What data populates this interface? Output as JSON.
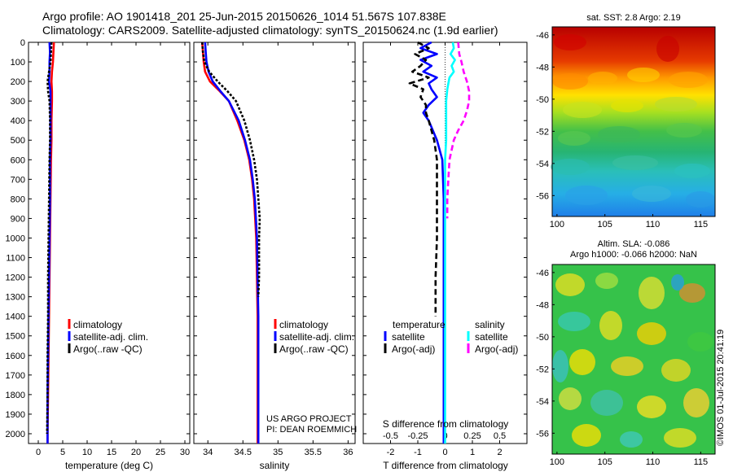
{
  "header": {
    "line1": "Argo profile: AO 1901418_201 25-Jun-2015 20150626_1014 51.567S 107.838E",
    "line2": "Climatology: CARS2009. Satellite-adjusted climatology: synTS_20150624.nc (1.9d earlier)"
  },
  "stamp": "©IMOS 01-Jul-2015 20:41:19",
  "colors": {
    "climatology": "#ff0000",
    "satellite": "#0000ff",
    "argo": "#000000",
    "sal_satellite": "#00ffff",
    "sal_argo": "#ff00ff"
  },
  "chart_data": [
    {
      "type": "line",
      "id": "temperature",
      "xlabel": "temperature (deg C)",
      "xlim": [
        -2,
        31
      ],
      "ylim": [
        0,
        2050
      ],
      "y_inverted": true,
      "xticks": [
        0,
        5,
        10,
        15,
        20,
        25,
        30
      ],
      "yticks": [
        0,
        100,
        200,
        300,
        400,
        500,
        600,
        700,
        800,
        900,
        1000,
        1100,
        1200,
        1300,
        1400,
        1500,
        1600,
        1700,
        1800,
        1900,
        2000
      ],
      "legend": [
        "climatology",
        "satellite-adj. clim.",
        "Argo(..raw -QC)"
      ],
      "series": [
        {
          "name": "climatology",
          "style": "solid",
          "depth": [
            0,
            50,
            100,
            150,
            200,
            250,
            300,
            400,
            500,
            600,
            800,
            1000,
            1200,
            1400,
            1600,
            1800,
            2000,
            2050
          ],
          "values": [
            3.2,
            3.1,
            3.0,
            2.8,
            2.7,
            2.8,
            2.8,
            2.7,
            2.7,
            2.6,
            2.5,
            2.4,
            2.3,
            2.2,
            2.1,
            2.0,
            1.9,
            1.9
          ]
        },
        {
          "name": "satellite-adj. clim.",
          "style": "solid",
          "depth": [
            0,
            50,
            100,
            150,
            200,
            250,
            300,
            400,
            500,
            600,
            800,
            1000,
            1200,
            1400,
            1600,
            1800,
            2000,
            2050
          ],
          "values": [
            2.3,
            2.4,
            2.3,
            2.3,
            2.2,
            2.5,
            2.5,
            2.5,
            2.5,
            2.4,
            2.4,
            2.3,
            2.2,
            2.1,
            2.0,
            1.9,
            1.9,
            1.9
          ]
        },
        {
          "name": "Argo(..raw -QC)",
          "style": "dashed",
          "depth": [
            0,
            50,
            100,
            150,
            200,
            250,
            300,
            400,
            500,
            600,
            800,
            1000,
            1200,
            1400,
            1600,
            1800,
            2000
          ],
          "values": [
            2.7,
            2.6,
            2.5,
            2.2,
            1.9,
            2.0,
            2.3,
            2.4,
            2.4,
            2.3,
            2.2,
            2.1,
            2.0,
            2.0,
            1.9,
            1.9,
            1.8
          ]
        }
      ]
    },
    {
      "type": "line",
      "id": "salinity",
      "xlabel": "salinity",
      "xlim": [
        33.8,
        36.1
      ],
      "ylim": [
        0,
        2050
      ],
      "y_inverted": true,
      "xticks": [
        34,
        34.5,
        35,
        35.5,
        36
      ],
      "xticklabels": [
        "34",
        "34.5",
        "35",
        "35.5",
        "36"
      ],
      "legend": [
        "climatology",
        "satellite-adj. clim.",
        "Argo(..raw -QC)"
      ],
      "annotation": [
        "US ARGO PROJECT",
        "PI: DEAN ROEMMICH"
      ],
      "series": [
        {
          "name": "climatology",
          "style": "solid",
          "depth": [
            0,
            50,
            100,
            150,
            200,
            250,
            300,
            400,
            500,
            600,
            700,
            800,
            1000,
            1200,
            1400,
            1600,
            1800,
            2000,
            2050
          ],
          "values": [
            33.92,
            33.93,
            33.94,
            33.96,
            34.03,
            34.17,
            34.3,
            34.42,
            34.52,
            34.59,
            34.63,
            34.66,
            34.69,
            34.7,
            34.71,
            34.71,
            34.71,
            34.71,
            34.71
          ]
        },
        {
          "name": "satellite-adj. clim.",
          "style": "solid",
          "depth": [
            0,
            50,
            100,
            150,
            200,
            250,
            300,
            400,
            500,
            600,
            700,
            800,
            1000,
            1200,
            1400,
            1600,
            1800,
            2000,
            2050
          ],
          "values": [
            33.96,
            33.97,
            33.98,
            34.01,
            34.07,
            34.18,
            34.3,
            34.44,
            34.53,
            34.6,
            34.64,
            34.67,
            34.7,
            34.71,
            34.72,
            34.72,
            34.72,
            34.72,
            34.72
          ]
        },
        {
          "name": "Argo(..raw -QC)",
          "style": "dashed",
          "depth": [
            0,
            50,
            100,
            150,
            200,
            250,
            300,
            400,
            500,
            600,
            700,
            800,
            900,
            1000,
            1100,
            1200,
            1300
          ],
          "values": [
            33.92,
            33.93,
            33.95,
            34.02,
            34.14,
            34.28,
            34.4,
            34.52,
            34.6,
            34.66,
            34.7,
            34.72,
            34.74,
            34.73,
            34.73,
            34.73,
            34.72
          ]
        }
      ]
    },
    {
      "type": "line",
      "id": "difference",
      "xlabel": "T difference from climatology",
      "top_axis_label": "S difference from climatology",
      "xlim": [
        -3,
        3
      ],
      "ylim": [
        0,
        2050
      ],
      "y_inverted": true,
      "xticks": [
        -2,
        -1,
        0,
        1,
        2
      ],
      "top_ticks": [
        -0.5,
        -0.25,
        0,
        0.25,
        0.5
      ],
      "legend_groups": [
        {
          "title": "temperature",
          "items": [
            "satellite",
            "Argo(-adj)"
          ]
        },
        {
          "title": "salinity",
          "items": [
            "satellite",
            "Argo(-adj)"
          ]
        }
      ],
      "series": [
        {
          "name": "temperature satellite",
          "axis": "T",
          "style": "solid",
          "depth": [
            0,
            30,
            60,
            90,
            120,
            150,
            180,
            210,
            240,
            280,
            320,
            360,
            400,
            500,
            600,
            800,
            1000,
            1200,
            1400,
            1600,
            1800,
            2000,
            2050
          ],
          "values": [
            -0.5,
            -0.9,
            -0.3,
            -0.9,
            -0.5,
            -0.8,
            -0.3,
            -0.6,
            -0.5,
            -0.3,
            -0.6,
            -0.8,
            -0.6,
            -0.3,
            -0.1,
            -0.05,
            -0.05,
            -0.05,
            -0.05,
            -0.05,
            -0.05,
            -0.05,
            -0.05
          ]
        },
        {
          "name": "temperature Argo(-adj)",
          "axis": "T",
          "style": "dashed",
          "depth": [
            0,
            30,
            60,
            90,
            120,
            150,
            180,
            210,
            240,
            280,
            320,
            360,
            400,
            500,
            600,
            800,
            1000,
            1200,
            1400
          ],
          "values": [
            -1.0,
            -0.6,
            -1.1,
            -0.7,
            -0.9,
            -1.2,
            -0.6,
            -1.3,
            -0.8,
            -0.9,
            -0.7,
            -0.7,
            -0.6,
            -0.4,
            -0.3,
            -0.3,
            -0.3,
            -0.35,
            -0.35
          ]
        },
        {
          "name": "salinity satellite",
          "axis": "S",
          "style": "solid",
          "depth": [
            0,
            30,
            60,
            90,
            120,
            150,
            180,
            210,
            240,
            300,
            400,
            500,
            600,
            800,
            1000,
            1200,
            1400,
            1600,
            1800,
            2000,
            2050
          ],
          "values": [
            0.07,
            0.08,
            0.05,
            0.09,
            0.06,
            0.08,
            0.04,
            0.03,
            0.02,
            0.01,
            0.01,
            0.01,
            0.0,
            0.0,
            0.0,
            0.0,
            0.0,
            0.0,
            0.0,
            0.0,
            0.0
          ]
        },
        {
          "name": "salinity Argo(-adj)",
          "axis": "S",
          "style": "dashed",
          "depth": [
            0,
            60,
            100,
            150,
            200,
            250,
            300,
            350,
            400,
            450,
            500,
            600,
            700,
            800,
            900
          ],
          "values": [
            0.12,
            0.13,
            0.15,
            0.17,
            0.2,
            0.22,
            0.22,
            0.2,
            0.17,
            0.12,
            0.08,
            0.04,
            0.03,
            0.02,
            0.02
          ]
        }
      ]
    },
    {
      "type": "heatmap",
      "id": "sst_map",
      "title": "sat. SST: 2.8  Argo: 2.19",
      "xticks": [
        100,
        105,
        110,
        115
      ],
      "yticks": [
        -46,
        -48,
        -50,
        -52,
        -54,
        -56
      ],
      "xlim": [
        99.5,
        116.5
      ],
      "ylim": [
        -57.3,
        -45.5
      ]
    },
    {
      "type": "heatmap",
      "id": "sla_map",
      "title": [
        "Altim. SLA: -0.086",
        "Argo h1000: -0.066 h2000: NaN"
      ],
      "xticks": [
        100,
        105,
        110,
        115
      ],
      "yticks": [
        -46,
        -48,
        -50,
        -52,
        -54,
        -56
      ],
      "xlim": [
        99.5,
        116.5
      ],
      "ylim": [
        -57.3,
        -45.5
      ]
    }
  ]
}
